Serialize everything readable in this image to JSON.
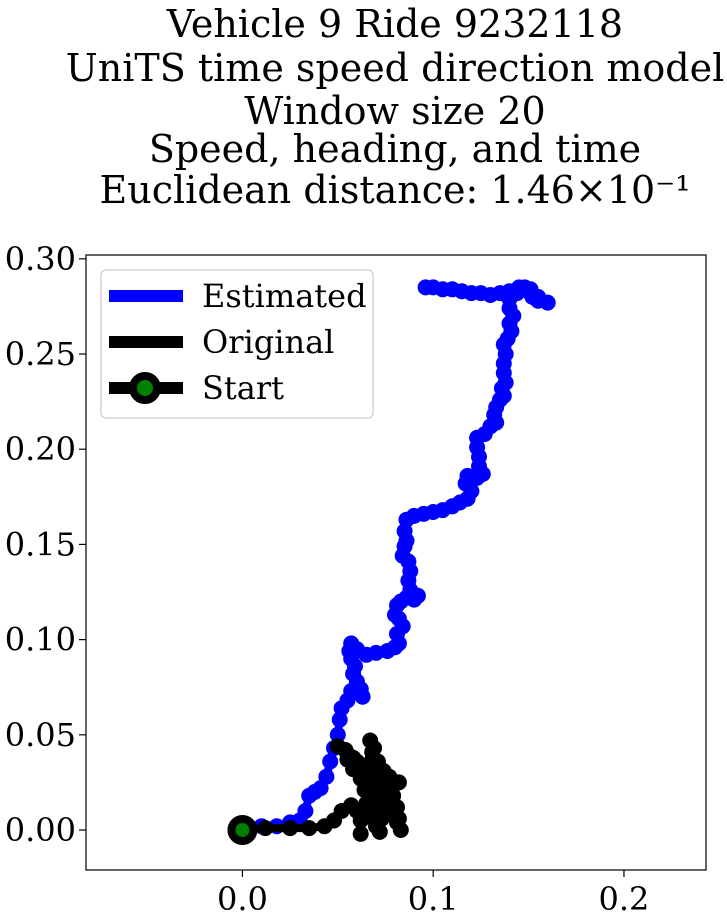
{
  "chart_data": {
    "type": "line",
    "title_lines": [
      "Vehicle 9 Ride 9232118",
      "UniTS time speed direction model",
      "Window size 20",
      "Speed, heading, and time",
      "Euclidean distance: 1.46×10⁻¹"
    ],
    "xlim": [
      -0.082,
      0.243
    ],
    "ylim": [
      -0.021,
      0.302
    ],
    "x_ticks": [
      0.0,
      0.1,
      0.2
    ],
    "x_tick_labels": [
      "0.0",
      "0.1",
      "0.2"
    ],
    "y_ticks": [
      0.0,
      0.05,
      0.1,
      0.15,
      0.2,
      0.25,
      0.3
    ],
    "y_tick_labels": [
      "0.00",
      "0.05",
      "0.10",
      "0.15",
      "0.20",
      "0.25",
      "0.30"
    ],
    "legend_position": "top-left",
    "series": [
      {
        "name": "Estimated",
        "color": "#0000ff",
        "points": [
          [
            0.0,
            0.0
          ],
          [
            0.01,
            0.002
          ],
          [
            0.018,
            0.002
          ],
          [
            0.025,
            0.004
          ],
          [
            0.03,
            0.005
          ],
          [
            0.033,
            0.01
          ],
          [
            0.035,
            0.018
          ],
          [
            0.038,
            0.02
          ],
          [
            0.041,
            0.022
          ],
          [
            0.044,
            0.028
          ],
          [
            0.046,
            0.036
          ],
          [
            0.048,
            0.043
          ],
          [
            0.05,
            0.05
          ],
          [
            0.051,
            0.058
          ],
          [
            0.052,
            0.064
          ],
          [
            0.055,
            0.068
          ],
          [
            0.057,
            0.073
          ],
          [
            0.06,
            0.076
          ],
          [
            0.062,
            0.074
          ],
          [
            0.063,
            0.07
          ],
          [
            0.062,
            0.074
          ],
          [
            0.06,
            0.078
          ],
          [
            0.058,
            0.082
          ],
          [
            0.059,
            0.086
          ],
          [
            0.057,
            0.09
          ],
          [
            0.056,
            0.094
          ],
          [
            0.057,
            0.098
          ],
          [
            0.06,
            0.095
          ],
          [
            0.065,
            0.092
          ],
          [
            0.07,
            0.093
          ],
          [
            0.076,
            0.094
          ],
          [
            0.08,
            0.096
          ],
          [
            0.082,
            0.098
          ],
          [
            0.081,
            0.103
          ],
          [
            0.084,
            0.107
          ],
          [
            0.082,
            0.111
          ],
          [
            0.08,
            0.113
          ],
          [
            0.081,
            0.118
          ],
          [
            0.083,
            0.12
          ],
          [
            0.086,
            0.122
          ],
          [
            0.09,
            0.121
          ],
          [
            0.092,
            0.123
          ],
          [
            0.088,
            0.126
          ],
          [
            0.087,
            0.131
          ],
          [
            0.088,
            0.136
          ],
          [
            0.087,
            0.141
          ],
          [
            0.084,
            0.144
          ],
          [
            0.085,
            0.149
          ],
          [
            0.086,
            0.152
          ],
          [
            0.085,
            0.157
          ],
          [
            0.086,
            0.163
          ],
          [
            0.09,
            0.165
          ],
          [
            0.095,
            0.166
          ],
          [
            0.1,
            0.167
          ],
          [
            0.105,
            0.168
          ],
          [
            0.11,
            0.17
          ],
          [
            0.114,
            0.172
          ],
          [
            0.118,
            0.174
          ],
          [
            0.12,
            0.178
          ],
          [
            0.117,
            0.182
          ],
          [
            0.118,
            0.186
          ],
          [
            0.123,
            0.185
          ],
          [
            0.126,
            0.187
          ],
          [
            0.124,
            0.191
          ],
          [
            0.124,
            0.196
          ],
          [
            0.123,
            0.201
          ],
          [
            0.123,
            0.206
          ],
          [
            0.127,
            0.208
          ],
          [
            0.13,
            0.212
          ],
          [
            0.133,
            0.214
          ],
          [
            0.132,
            0.218
          ],
          [
            0.133,
            0.222
          ],
          [
            0.135,
            0.226
          ],
          [
            0.137,
            0.228
          ],
          [
            0.136,
            0.232
          ],
          [
            0.138,
            0.235
          ],
          [
            0.137,
            0.24
          ],
          [
            0.137,
            0.245
          ],
          [
            0.138,
            0.25
          ],
          [
            0.137,
            0.255
          ],
          [
            0.139,
            0.258
          ],
          [
            0.141,
            0.262
          ],
          [
            0.14,
            0.266
          ],
          [
            0.142,
            0.27
          ],
          [
            0.14,
            0.274
          ],
          [
            0.14,
            0.279
          ],
          [
            0.144,
            0.282
          ],
          [
            0.148,
            0.285
          ],
          [
            0.151,
            0.284
          ],
          [
            0.152,
            0.28
          ],
          [
            0.155,
            0.278
          ],
          [
            0.16,
            0.277
          ],
          [
            0.155,
            0.28
          ],
          [
            0.15,
            0.283
          ],
          [
            0.145,
            0.285
          ],
          [
            0.14,
            0.283
          ],
          [
            0.135,
            0.282
          ],
          [
            0.13,
            0.281
          ],
          [
            0.125,
            0.282
          ],
          [
            0.12,
            0.282
          ],
          [
            0.115,
            0.283
          ],
          [
            0.11,
            0.284
          ],
          [
            0.105,
            0.284
          ],
          [
            0.1,
            0.285
          ],
          [
            0.096,
            0.285
          ]
        ]
      },
      {
        "name": "Original",
        "color": "#000000",
        "points": [
          [
            0.0,
            0.0
          ],
          [
            0.012,
            0.001
          ],
          [
            0.025,
            0.001
          ],
          [
            0.035,
            0.001
          ],
          [
            0.043,
            0.002
          ],
          [
            0.048,
            0.005
          ],
          [
            0.052,
            0.01
          ],
          [
            0.057,
            0.013
          ],
          [
            0.06,
            0.01
          ],
          [
            0.062,
            0.005
          ],
          [
            0.062,
            -0.002
          ],
          [
            0.063,
            0.006
          ],
          [
            0.065,
            0.014
          ],
          [
            0.067,
            0.02
          ],
          [
            0.066,
            0.026
          ],
          [
            0.062,
            0.033
          ],
          [
            0.058,
            0.038
          ],
          [
            0.054,
            0.042
          ],
          [
            0.05,
            0.044
          ],
          [
            0.055,
            0.04
          ],
          [
            0.06,
            0.036
          ],
          [
            0.066,
            0.032
          ],
          [
            0.07,
            0.028
          ],
          [
            0.074,
            0.024
          ],
          [
            0.078,
            0.026
          ],
          [
            0.082,
            0.025
          ],
          [
            0.078,
            0.021
          ],
          [
            0.074,
            0.016
          ],
          [
            0.072,
            0.01
          ],
          [
            0.071,
            0.004
          ],
          [
            0.072,
            -0.001
          ],
          [
            0.073,
            0.006
          ],
          [
            0.072,
            0.013
          ],
          [
            0.071,
            0.02
          ],
          [
            0.07,
            0.027
          ],
          [
            0.069,
            0.034
          ],
          [
            0.068,
            0.041
          ],
          [
            0.067,
            0.047
          ],
          [
            0.069,
            0.043
          ],
          [
            0.071,
            0.036
          ],
          [
            0.074,
            0.03
          ],
          [
            0.077,
            0.024
          ],
          [
            0.079,
            0.018
          ],
          [
            0.081,
            0.012
          ],
          [
            0.082,
            0.006
          ],
          [
            0.083,
            0.0
          ],
          [
            0.081,
            0.004
          ],
          [
            0.078,
            0.008
          ],
          [
            0.075,
            0.012
          ],
          [
            0.071,
            0.017
          ],
          [
            0.066,
            0.022
          ],
          [
            0.062,
            0.027
          ],
          [
            0.058,
            0.032
          ],
          [
            0.055,
            0.037
          ],
          [
            0.058,
            0.034
          ],
          [
            0.062,
            0.03
          ],
          [
            0.066,
            0.026
          ],
          [
            0.07,
            0.022
          ],
          [
            0.075,
            0.018
          ],
          [
            0.079,
            0.014
          ],
          [
            0.076,
            0.01
          ],
          [
            0.073,
            0.006
          ],
          [
            0.07,
            0.002
          ],
          [
            0.068,
            0.008
          ],
          [
            0.066,
            0.015
          ],
          [
            0.064,
            0.021
          ],
          [
            0.063,
            0.027
          ],
          [
            0.065,
            0.033
          ],
          [
            0.068,
            0.037
          ],
          [
            0.071,
            0.034
          ],
          [
            0.074,
            0.031
          ],
          [
            0.077,
            0.028
          ],
          [
            0.08,
            0.025
          ],
          [
            0.076,
            0.022
          ],
          [
            0.072,
            0.019
          ],
          [
            0.069,
            0.015
          ],
          [
            0.067,
            0.01
          ]
        ]
      }
    ],
    "start_marker": {
      "name": "Start",
      "x": 0.0,
      "y": 0.0,
      "face_color": "#008000",
      "edge_color": "#000000"
    }
  }
}
